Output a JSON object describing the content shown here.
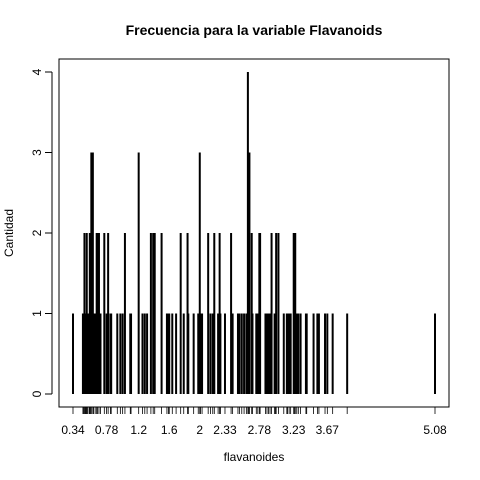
{
  "chart_data": {
    "type": "bar",
    "title": "Frecuencia para la variable Flavanoids",
    "xlabel": "flavanoides",
    "ylabel": "Cantidad",
    "xlim": [
      0.34,
      5.08
    ],
    "ylim": [
      0,
      4
    ],
    "x_tick_labels": [
      "0.34",
      "0.78",
      "1.2",
      "1.6",
      "2",
      "2.33",
      "2.78",
      "3.23",
      "3.67",
      "5.08"
    ],
    "y_ticks": [
      0,
      1,
      2,
      3,
      4
    ],
    "bar_width": "thin-lines",
    "x": [
      0.34,
      0.47,
      0.48,
      0.49,
      0.5,
      0.51,
      0.52,
      0.53,
      0.55,
      0.56,
      0.57,
      0.58,
      0.6,
      0.61,
      0.63,
      0.65,
      0.66,
      0.68,
      0.7,
      0.75,
      0.78,
      0.8,
      0.83,
      0.84,
      0.92,
      0.96,
      0.99,
      1.02,
      1.09,
      1.1,
      1.2,
      1.25,
      1.28,
      1.31,
      1.36,
      1.39,
      1.41,
      1.5,
      1.57,
      1.59,
      1.6,
      1.64,
      1.69,
      1.75,
      1.79,
      1.84,
      1.85,
      1.92,
      1.98,
      2,
      2.01,
      2.03,
      2.11,
      2.14,
      2.17,
      2.19,
      2.24,
      2.26,
      2.27,
      2.33,
      2.41,
      2.43,
      2.5,
      2.52,
      2.55,
      2.58,
      2.61,
      2.63,
      2.64,
      2.65,
      2.68,
      2.69,
      2.74,
      2.76,
      2.78,
      2.79,
      2.86,
      2.88,
      2.9,
      2.92,
      2.94,
      2.98,
      2.99,
      3,
      3.03,
      3.1,
      3.14,
      3.15,
      3.17,
      3.19,
      3.23,
      3.24,
      3.25,
      3.27,
      3.29,
      3.32,
      3.39,
      3.4,
      3.49,
      3.54,
      3.56,
      3.64,
      3.67,
      3.74,
      3.93,
      5.08
    ],
    "values": [
      1,
      1,
      1,
      2,
      1,
      1,
      2,
      1,
      1,
      2,
      2,
      3,
      3,
      1,
      1,
      2,
      2,
      2,
      1,
      2,
      1,
      2,
      1,
      1,
      1,
      1,
      1,
      2,
      1,
      1,
      3,
      1,
      1,
      1,
      2,
      2,
      2,
      2,
      1,
      1,
      1,
      1,
      1,
      2,
      1,
      2,
      1,
      1,
      1,
      3,
      1,
      1,
      2,
      1,
      1,
      2,
      1,
      2,
      1,
      1,
      2,
      1,
      1,
      1,
      1,
      1,
      1,
      4,
      2,
      3,
      2,
      1,
      1,
      1,
      2,
      2,
      1,
      1,
      1,
      1,
      2,
      1,
      1,
      2,
      2,
      1,
      1,
      1,
      1,
      1,
      2,
      1,
      2,
      1,
      1,
      1,
      1,
      1,
      1,
      1,
      1,
      1,
      1,
      1,
      1,
      1
    ]
  }
}
